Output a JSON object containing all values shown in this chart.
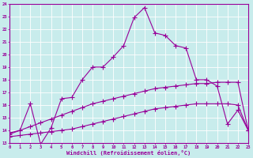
{
  "xlabel": "Windchill (Refroidissement éolien,°C)",
  "bg_color": "#c8ecec",
  "line_color": "#990099",
  "grid_color": "#ffffff",
  "xmin": 0,
  "xmax": 23,
  "ymin": 13,
  "ymax": 24,
  "line1_x": [
    0,
    1,
    2,
    3,
    4,
    5,
    6,
    7,
    8,
    9,
    10,
    11,
    12,
    13,
    14,
    15,
    16,
    17,
    18,
    19,
    20,
    21,
    22,
    23
  ],
  "line1_y": [
    13.7,
    14.0,
    16.1,
    12.9,
    14.2,
    16.5,
    16.6,
    18.0,
    19.0,
    19.0,
    19.8,
    20.7,
    22.9,
    23.7,
    21.7,
    21.5,
    20.7,
    20.5,
    18.0,
    18.0,
    17.5,
    14.5,
    15.6,
    14.0
  ],
  "line2_x": [
    0,
    1,
    2,
    3,
    4,
    5,
    6,
    7,
    8,
    9,
    10,
    11,
    12,
    13,
    14,
    15,
    16,
    17,
    18,
    19,
    20,
    21,
    22,
    23
  ],
  "line2_y": [
    13.8,
    14.0,
    14.3,
    14.6,
    14.9,
    15.2,
    15.5,
    15.8,
    16.1,
    16.3,
    16.5,
    16.7,
    16.9,
    17.1,
    17.3,
    17.4,
    17.5,
    17.6,
    17.7,
    17.7,
    17.8,
    17.8,
    17.8,
    14.0
  ],
  "line3_x": [
    0,
    1,
    2,
    3,
    4,
    5,
    6,
    7,
    8,
    9,
    10,
    11,
    12,
    13,
    14,
    15,
    16,
    17,
    18,
    19,
    20,
    21,
    22,
    23
  ],
  "line3_y": [
    13.5,
    13.6,
    13.7,
    13.8,
    13.9,
    14.0,
    14.1,
    14.3,
    14.5,
    14.7,
    14.9,
    15.1,
    15.3,
    15.5,
    15.7,
    15.8,
    15.9,
    16.0,
    16.1,
    16.1,
    16.1,
    16.1,
    16.0,
    14.0
  ]
}
